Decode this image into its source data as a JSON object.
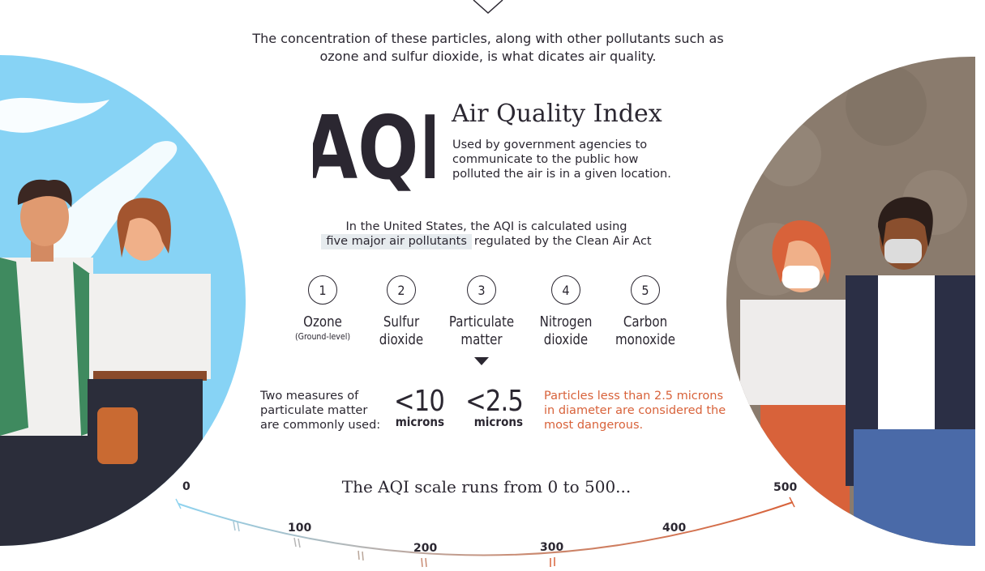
{
  "intro_text": "The concentration of these particles, along with other pollutants such as ozone and sulfur dioxide, is what dicates air quality.",
  "aqi": {
    "abbrev": "AQI",
    "title": "Air Quality Index",
    "description": "Used by government agencies to communicate to the public how polluted the air is in a given location."
  },
  "us_text": {
    "line1": "In the United States, the AQI is calculated using",
    "highlight": "five major air pollutants",
    "line2_rest": "regulated by the Clean Air Act"
  },
  "pollutants": [
    {
      "number": "1",
      "name_line1": "Ozone",
      "name_line2": "(Ground-level)"
    },
    {
      "number": "2",
      "name_line1": "Sulfur",
      "name_line2": "dioxide"
    },
    {
      "number": "3",
      "name_line1": "Particulate",
      "name_line2": "matter"
    },
    {
      "number": "4",
      "name_line1": "Nitrogen",
      "name_line2": "dioxide"
    },
    {
      "number": "5",
      "name_line1": "Carbon",
      "name_line2": "monoxide"
    }
  ],
  "measures": {
    "label": "Two measures of particulate matter are commonly used:",
    "pm10_value": "<10",
    "pm10_unit": "microns",
    "pm25_value": "<2.5",
    "pm25_unit": "microns",
    "danger_note": "Particles less than 2.5 microns in diameter are considered the most dangerous."
  },
  "scale": {
    "title": "The AQI scale runs from 0 to 500...",
    "ticks": [
      "0",
      "100",
      "200",
      "300",
      "400",
      "500"
    ]
  },
  "colors": {
    "text": "#2b2731",
    "accent_orange": "#d8623a",
    "sky_blue": "#87d3f5",
    "smog_brown": "#8a7b6d"
  }
}
